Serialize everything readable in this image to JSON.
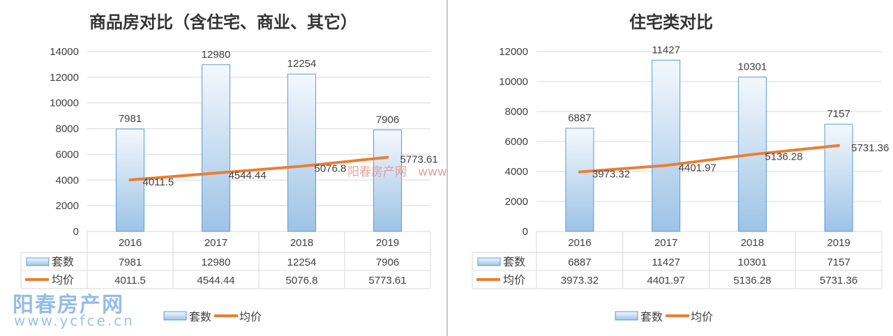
{
  "chart_data": [
    {
      "type": "bar+line",
      "title": "商品房对比（含住宅、商业、其它）",
      "categories": [
        "2016",
        "2017",
        "2018",
        "2019"
      ],
      "series": [
        {
          "name": "套数",
          "type": "bar",
          "values": [
            7981,
            12980,
            12254,
            7906
          ],
          "labels": [
            "7981",
            "12980",
            "12254",
            "7906"
          ]
        },
        {
          "name": "均价",
          "type": "line",
          "values": [
            4011.5,
            4544.44,
            5076.8,
            5773.61
          ],
          "labels": [
            "4011.5",
            "4544.44",
            "5076.8",
            "5773.61"
          ]
        }
      ],
      "ylim": [
        0,
        14000
      ],
      "yticks": [
        "0",
        "2000",
        "4000",
        "6000",
        "8000",
        "10000",
        "12000",
        "14000"
      ],
      "grid": true,
      "data_table": true,
      "legend": "bottom"
    },
    {
      "type": "bar+line",
      "title": "住宅类对比",
      "categories": [
        "2016",
        "2017",
        "2018",
        "2019"
      ],
      "series": [
        {
          "name": "套数",
          "type": "bar",
          "values": [
            6887,
            11427,
            10301,
            7157
          ],
          "labels": [
            "6887",
            "11427",
            "10301",
            "7157"
          ]
        },
        {
          "name": "均价",
          "type": "line",
          "values": [
            3973.32,
            4401.97,
            5136.28,
            5731.36
          ],
          "labels": [
            "3973.32",
            "4401.97",
            "5136.28",
            "5731.36"
          ]
        }
      ],
      "ylim": [
        0,
        12000
      ],
      "yticks": [
        "0",
        "2000",
        "4000",
        "6000",
        "8000",
        "10000",
        "12000"
      ],
      "grid": true,
      "data_table": true,
      "legend": "bottom"
    }
  ],
  "colors": {
    "bar_top": "#f4f8fd",
    "bar_bottom": "#9dc3e6",
    "bar_border": "#5b9bd5",
    "line": "#ed7d31",
    "grid": "#d9d9d9",
    "text": "#404040"
  },
  "watermark": {
    "logo": "阳春房产网",
    "url": "www.ycfce.cn",
    "red": "阳春房产网   www.ycfce.cn"
  }
}
